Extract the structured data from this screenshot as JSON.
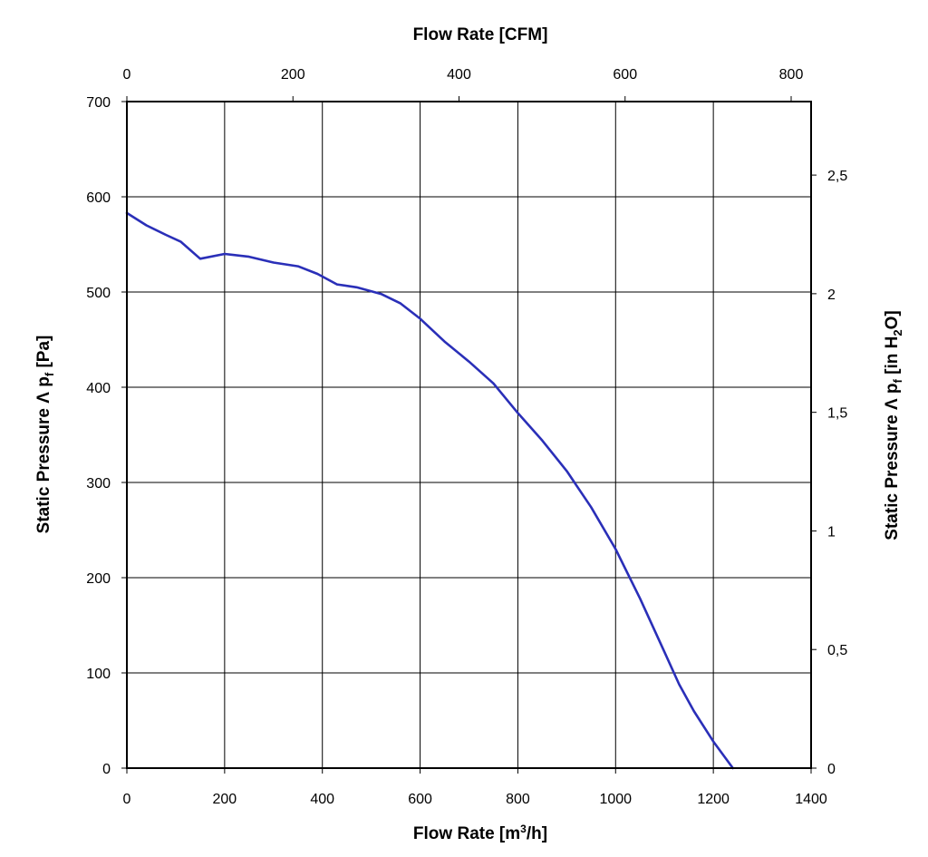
{
  "chart_data": {
    "type": "line",
    "title": "",
    "colors": {
      "line": "#2a2fb8",
      "grid": "#000000",
      "frame": "#000000"
    },
    "x_bottom": {
      "label_main": "Flow Rate [m",
      "label_sup": "3",
      "label_tail": "/h]",
      "lim": [
        0,
        1400
      ],
      "ticks": [
        0,
        200,
        400,
        600,
        800,
        1000,
        1200,
        1400
      ],
      "tick_labels": [
        "0",
        "200",
        "400",
        "600",
        "800",
        "1000",
        "1200",
        "1400"
      ]
    },
    "x_top": {
      "label": "Flow Rate [CFM]",
      "lim": [
        0,
        824
      ],
      "ticks": [
        0,
        200,
        400,
        600,
        800
      ],
      "tick_labels": [
        "0",
        "200",
        "400",
        "600",
        "800"
      ]
    },
    "y_left": {
      "label_main": "Static Pressure Λ p",
      "label_sub": "f",
      "label_tail": " [Pa]",
      "lim": [
        0,
        700
      ],
      "ticks": [
        0,
        100,
        200,
        300,
        400,
        500,
        600,
        700
      ],
      "tick_labels": [
        "0",
        "100",
        "200",
        "300",
        "400",
        "500",
        "600",
        "700"
      ]
    },
    "y_right": {
      "label_main": "Static Pressure Λ p",
      "label_sub": "f",
      "label_mid": " [in H",
      "label_sub2": "2",
      "label_tail": "O]",
      "lim": [
        0,
        2.81
      ],
      "ticks": [
        0,
        0.5,
        1,
        1.5,
        2,
        2.5
      ],
      "tick_labels": [
        "0",
        "0,5",
        "1",
        "1,5",
        "2",
        "2,5"
      ]
    },
    "series": [
      {
        "name": "Static Pressure",
        "x": [
          0,
          40,
          80,
          110,
          150,
          200,
          250,
          300,
          350,
          390,
          430,
          470,
          520,
          560,
          600,
          650,
          700,
          750,
          800,
          850,
          900,
          950,
          1000,
          1050,
          1100,
          1130,
          1160,
          1200,
          1240
        ],
        "y": [
          583,
          570,
          560,
          553,
          535,
          540,
          537,
          531,
          527,
          519,
          508,
          505,
          498,
          488,
          472,
          448,
          427,
          404,
          373,
          344,
          312,
          274,
          230,
          178,
          122,
          88,
          60,
          28,
          0
        ]
      }
    ]
  }
}
